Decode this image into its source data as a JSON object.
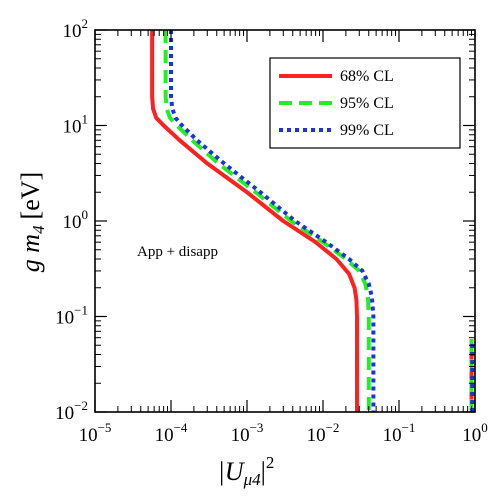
{
  "chart_data": {
    "type": "line",
    "xlabel": "|U",
    "xlabel_sub": "μ4",
    "xlabel_tail": "|",
    "xlabel_sup": "2",
    "ylabel": "g m",
    "ylabel_sub": "4",
    "ylabel_unit": "[eV]",
    "xscale": "log",
    "yscale": "log",
    "xlim": [
      1e-05,
      1
    ],
    "ylim": [
      0.01,
      100
    ],
    "x_ticks": [
      1e-05,
      0.0001,
      0.001,
      0.01,
      0.1,
      1
    ],
    "x_tick_labels": [
      {
        "base": "10",
        "exp": "−5"
      },
      {
        "base": "10",
        "exp": "−4"
      },
      {
        "base": "10",
        "exp": "−3"
      },
      {
        "base": "10",
        "exp": "−2"
      },
      {
        "base": "10",
        "exp": "−1"
      },
      {
        "base": "10",
        "exp": "0"
      }
    ],
    "y_ticks": [
      0.01,
      0.1,
      1,
      10,
      100
    ],
    "y_tick_labels": [
      {
        "base": "10",
        "exp": "−2"
      },
      {
        "base": "10",
        "exp": "−1"
      },
      {
        "base": "10",
        "exp": "0"
      },
      {
        "base": "10",
        "exp": "1"
      },
      {
        "base": "10",
        "exp": "2"
      }
    ],
    "annotation": "App + disapp",
    "legend_position": "top-right",
    "series": [
      {
        "name": "68% CL",
        "color": "#ff2020",
        "dash": "solid",
        "segments": [
          [
            [
              5.65e-05,
              100
            ],
            [
              5.65e-05,
              20
            ],
            [
              5.8e-05,
              15
            ],
            [
              6.4e-05,
              12
            ],
            [
              8e-05,
              10
            ],
            [
              0.00013,
              7
            ],
            [
              0.0003,
              4
            ],
            [
              0.001,
              2
            ],
            [
              0.003,
              1
            ],
            [
              0.008,
              0.6
            ],
            [
              0.015,
              0.4
            ],
            [
              0.022,
              0.28
            ],
            [
              0.026,
              0.2
            ],
            [
              0.0275,
              0.15
            ],
            [
              0.028,
              0.1
            ],
            [
              0.028,
              0.01
            ]
          ],
          [
            [
              0.9,
              0.01
            ],
            [
              0.9,
              0.046
            ]
          ]
        ]
      },
      {
        "name": "95% CL",
        "color": "#22ee22",
        "dash": "dashed",
        "segments": [
          [
            [
              8.5e-05,
              100
            ],
            [
              8.5e-05,
              20
            ],
            [
              8.8e-05,
              15
            ],
            [
              9.7e-05,
              12
            ],
            [
              0.00012,
              10
            ],
            [
              0.00019,
              7
            ],
            [
              0.00042,
              4
            ],
            [
              0.0013,
              2
            ],
            [
              0.0038,
              1
            ],
            [
              0.01,
              0.6
            ],
            [
              0.02,
              0.4
            ],
            [
              0.03,
              0.3
            ],
            [
              0.036,
              0.22
            ],
            [
              0.039,
              0.16
            ],
            [
              0.04,
              0.1
            ],
            [
              0.04,
              0.01
            ]
          ],
          [
            [
              0.9,
              0.01
            ],
            [
              0.9,
              0.062
            ]
          ]
        ]
      },
      {
        "name": "99% CL",
        "color": "#1a33dd",
        "dash": "dotted",
        "segments": [
          [
            [
              0.0001,
              100
            ],
            [
              0.0001,
              20
            ],
            [
              0.000104,
              15
            ],
            [
              0.000115,
              12
            ],
            [
              0.00014,
              10
            ],
            [
              0.00022,
              7
            ],
            [
              0.0005,
              4
            ],
            [
              0.0015,
              2
            ],
            [
              0.0043,
              1
            ],
            [
              0.011,
              0.6
            ],
            [
              0.022,
              0.4
            ],
            [
              0.033,
              0.3
            ],
            [
              0.04,
              0.22
            ],
            [
              0.044,
              0.16
            ],
            [
              0.046,
              0.1
            ],
            [
              0.046,
              0.01
            ]
          ],
          [
            [
              0.92,
              0.01
            ],
            [
              0.92,
              0.055
            ]
          ]
        ]
      }
    ]
  }
}
